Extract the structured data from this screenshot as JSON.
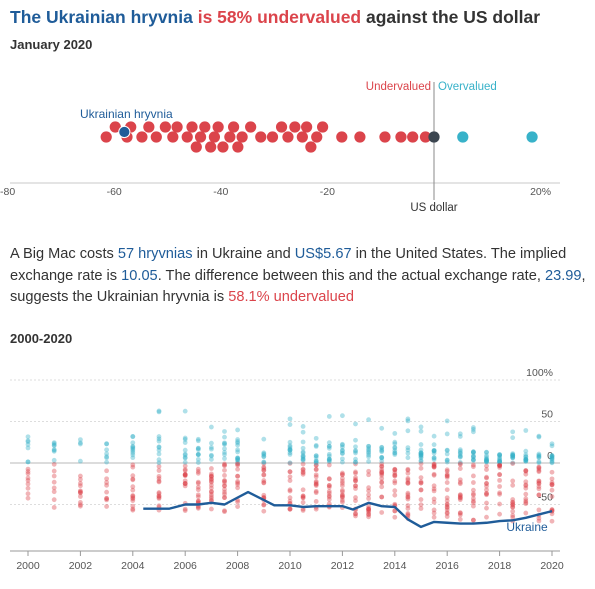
{
  "header": {
    "title_part1": "The Ukrainian hryvnia",
    "title_part2": "is 58% undervalued",
    "title_part3": "against the US dollar",
    "subtitle": "January 2020"
  },
  "description": {
    "s1": "A Big Mac costs",
    "price_local": "57 hryvnias",
    "s2": "in Ukraine and",
    "price_us": "US$5.67",
    "s3": "in the United States. The implied exchange rate is",
    "implied_rate": "10.05",
    "s4": ". The difference between this and the actual exchange rate,",
    "actual_rate": "23.99",
    "s5": ", suggests the Ukrainian hryvnia is",
    "verdict": "58.1% undervalued"
  },
  "colors": {
    "undervalued": "#db444b",
    "overvalued": "#38b2c9",
    "highlight": "#1f5c99",
    "usd": "#3c4650"
  },
  "chart_data": [
    {
      "type": "scatter",
      "title": "January 2020",
      "x_ticks": [
        "-80",
        "-60",
        "-40",
        "-20",
        "20%"
      ],
      "xlim": [
        -85,
        21
      ],
      "legend": {
        "undervalued": "Undervalued",
        "overvalued": "Overvalued"
      },
      "reference_label": "US dollar",
      "highlight_label": "Ukrainian hryvnia",
      "highlight_value": -58.1,
      "values": [
        -61.5,
        -59.8,
        -57.6,
        -56.9,
        -54.8,
        -53.5,
        -52.1,
        -50.4,
        -49.0,
        -48.2,
        -46.3,
        -45.4,
        -44.6,
        -43.8,
        -43.0,
        -41.9,
        -41.2,
        -40.5,
        -39.6,
        -38.3,
        -37.6,
        -36.8,
        -36.0,
        -34.4,
        -32.5,
        -30.3,
        -28.6,
        -27.4,
        -26.1,
        -24.7,
        -23.9,
        -23.1,
        -22.0,
        -20.9,
        -17.3,
        -13.9,
        -9.2,
        -6.2,
        -4.0,
        -1.6,
        5.4,
        18.4
      ],
      "overvalued_values": [
        5.4,
        18.4
      ],
      "reference_value": 0
    },
    {
      "type": "scatter",
      "title": "2000-2020",
      "x_ticks": [
        "2000",
        "2002",
        "2004",
        "2006",
        "2008",
        "2010",
        "2012",
        "2014",
        "2016",
        "2018",
        "2020"
      ],
      "y_ticks": [
        "100%",
        "50",
        "0",
        "-50"
      ],
      "ylim": [
        -100,
        110
      ],
      "series": [
        {
          "name": "Ukraine",
          "x": [
            2004.4,
            2005.4,
            2006.0,
            2006.5,
            2007.0,
            2007.5,
            2008.4,
            2009.4,
            2010.0,
            2010.5,
            2011.0,
            2011.5,
            2012.0,
            2012.4,
            2013.0,
            2013.5,
            2014.0,
            2014.5,
            2015.0,
            2015.5,
            2016.0,
            2016.5,
            2017.0,
            2017.5,
            2018.0,
            2018.5,
            2019.0,
            2019.5,
            2020.0
          ],
          "y": [
            -55,
            -55,
            -50,
            -50,
            -48,
            -50,
            -35,
            -51,
            -51,
            -53,
            -52,
            -52,
            -52,
            -56,
            -48,
            -52,
            -53,
            -68,
            -77,
            -71,
            -72,
            -73,
            -73,
            -72,
            -70,
            -69,
            -66,
            -62,
            -58
          ]
        }
      ],
      "panel_years": [
        2000,
        2001,
        2002,
        2003,
        2004,
        2005,
        2006,
        2006.5,
        2007,
        2007.5,
        2008,
        2009,
        2010,
        2010.5,
        2011,
        2011.5,
        2012,
        2012.5,
        2013,
        2013.5,
        2014,
        2014.5,
        2015,
        2015.5,
        2016,
        2016.5,
        2017,
        2017.5,
        2018,
        2018.5,
        2019,
        2019.5,
        2020
      ]
    }
  ]
}
